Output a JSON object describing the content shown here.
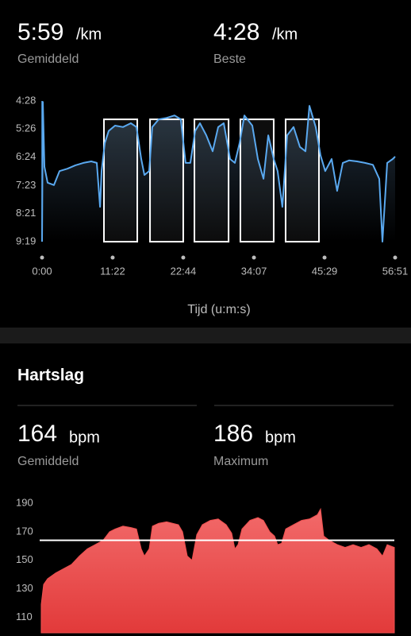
{
  "pace_stats": [
    {
      "value": "5:59",
      "unit": "/km",
      "label": "Gemiddeld"
    },
    {
      "value": "4:28",
      "unit": "/km",
      "label": "Beste"
    }
  ],
  "heart": {
    "title": "Hartslag",
    "stats": [
      {
        "value": 164,
        "unit": "bpm",
        "label": "Gemiddeld"
      },
      {
        "value": 186,
        "unit": "bpm",
        "label": "Maximum"
      }
    ]
  },
  "chart_data": [
    {
      "type": "line",
      "xlabel": "Tijd (u:m:s)",
      "color": "#5aa9f0",
      "y_inverted": true,
      "x": [
        0,
        8,
        23,
        54,
        115,
        169,
        245,
        322,
        399,
        475,
        529,
        560,
        575,
        606,
        644,
        705,
        782,
        858,
        912,
        958,
        989,
        1035,
        1065,
        1127,
        1203,
        1280,
        1341,
        1387,
        1433,
        1479,
        1525,
        1587,
        1648,
        1702,
        1755,
        1817,
        1863,
        1909,
        1955,
        2031,
        2085,
        2139,
        2185,
        2238,
        2276,
        2322,
        2368,
        2430,
        2491,
        2545,
        2583,
        2644,
        2690,
        2736,
        2798,
        2851,
        2905,
        2966,
        3043,
        3120,
        3196,
        3258,
        3288,
        3334,
        3388,
        3411
      ],
      "values": [
        559,
        270,
        404,
        437,
        442,
        413,
        408,
        401,
        396,
        393,
        396,
        487,
        413,
        355,
        330,
        319,
        322,
        314,
        322,
        388,
        421,
        413,
        322,
        306,
        303,
        298,
        306,
        396,
        396,
        330,
        314,
        339,
        372,
        322,
        314,
        388,
        396,
        355,
        298,
        319,
        388,
        429,
        339,
        388,
        413,
        487,
        339,
        322,
        363,
        372,
        278,
        322,
        380,
        413,
        388,
        454,
        396,
        391,
        393,
        396,
        400,
        429,
        559,
        396,
        388,
        383
      ],
      "intervals": [
        {
          "start": 598,
          "end": 920,
          "pace": 306
        },
        {
          "start": 1043,
          "end": 1364,
          "pace": 306
        },
        {
          "start": 1472,
          "end": 1802,
          "pace": 306
        },
        {
          "start": 1916,
          "end": 2238,
          "pace": 306
        },
        {
          "start": 2353,
          "end": 2675,
          "pace": 306
        }
      ],
      "xlim": [
        0,
        3411
      ],
      "ylim": [
        268,
        559
      ],
      "xticks": [
        {
          "value": 0,
          "label": "0:00"
        },
        {
          "value": 682,
          "label": "11:22"
        },
        {
          "value": 1364,
          "label": "22:44"
        },
        {
          "value": 2047,
          "label": "34:07"
        },
        {
          "value": 2729,
          "label": "45:29"
        },
        {
          "value": 3411,
          "label": "56:51"
        }
      ],
      "yticks": [
        {
          "value": 268,
          "label": "4:28"
        },
        {
          "value": 326,
          "label": "5:26"
        },
        {
          "value": 384,
          "label": "6:24"
        },
        {
          "value": 443,
          "label": "7:23"
        },
        {
          "value": 501,
          "label": "8:21"
        },
        {
          "value": 559,
          "label": "9:19"
        }
      ]
    },
    {
      "type": "area",
      "color": "#ee5050",
      "x": [
        15,
        38,
        76,
        153,
        229,
        305,
        382,
        458,
        534,
        610,
        672,
        725,
        801,
        878,
        931,
        977,
        1007,
        1053,
        1084,
        1145,
        1221,
        1335,
        1374,
        1419,
        1465,
        1511,
        1564,
        1641,
        1717,
        1793,
        1847,
        1877,
        1908,
        1946,
        2022,
        2099,
        2152,
        2213,
        2259,
        2289,
        2327,
        2366,
        2442,
        2518,
        2595,
        2671,
        2701,
        2732,
        2785,
        2862,
        2938,
        3014,
        3091,
        3167,
        3243,
        3297,
        3342,
        3411
      ],
      "values": [
        119,
        133,
        137,
        141,
        144,
        147,
        153,
        158,
        161,
        164,
        170,
        172,
        174,
        173,
        172,
        158,
        153,
        158,
        174,
        176,
        177,
        175,
        170,
        153,
        150,
        168,
        175,
        178,
        179,
        175,
        169,
        158,
        161,
        172,
        178,
        180,
        178,
        170,
        167,
        161,
        162,
        172,
        175,
        178,
        179,
        182,
        186,
        167,
        164,
        161,
        159,
        161,
        159,
        161,
        158,
        153,
        161,
        159
      ],
      "xlim": [
        0,
        3411
      ],
      "ylim": [
        99,
        194
      ],
      "yticks": [
        190,
        170,
        150,
        130,
        110
      ]
    }
  ]
}
